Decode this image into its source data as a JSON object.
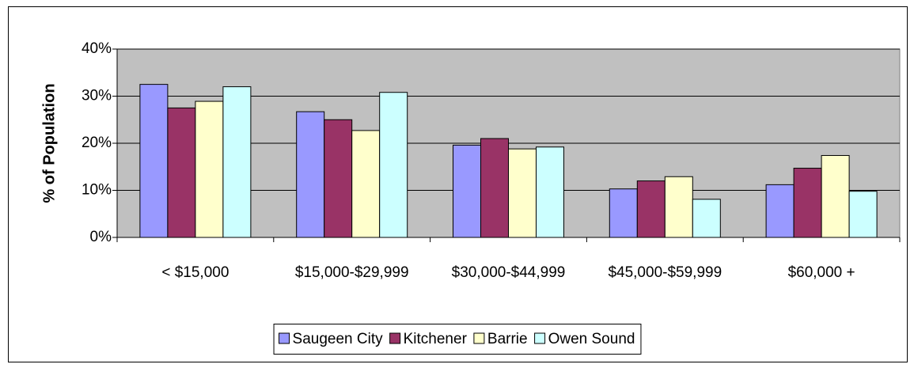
{
  "chart_data": {
    "type": "bar",
    "y_label": "% of Population",
    "categories": [
      "< $15,000",
      "$15,000-$29,999",
      "$30,000-$44,999",
      "$45,000-$59,999",
      "$60,000 +"
    ],
    "series": [
      {
        "name": "Saugeen City",
        "color": "#9999ff",
        "values": [
          32.5,
          26.7,
          19.6,
          10.3,
          11.2
        ]
      },
      {
        "name": "Kitchener",
        "color": "#993366",
        "values": [
          27.5,
          25,
          21,
          12,
          14.7
        ]
      },
      {
        "name": "Barrie",
        "color": "#ffffcc",
        "values": [
          28.9,
          22.7,
          18.8,
          12.9,
          17.4
        ]
      },
      {
        "name": "Owen Sound",
        "color": "#ccffff",
        "values": [
          32,
          30.8,
          19.2,
          8.1,
          9.8
        ]
      }
    ],
    "ylim": [
      0,
      40
    ],
    "yticks": [
      {
        "value": 0,
        "label": "0%"
      },
      {
        "value": 10,
        "label": "10%"
      },
      {
        "value": 20,
        "label": "20%"
      },
      {
        "value": 30,
        "label": "30%"
      },
      {
        "value": 40,
        "label": "40%"
      }
    ],
    "grid": true,
    "legend": "bottom"
  }
}
